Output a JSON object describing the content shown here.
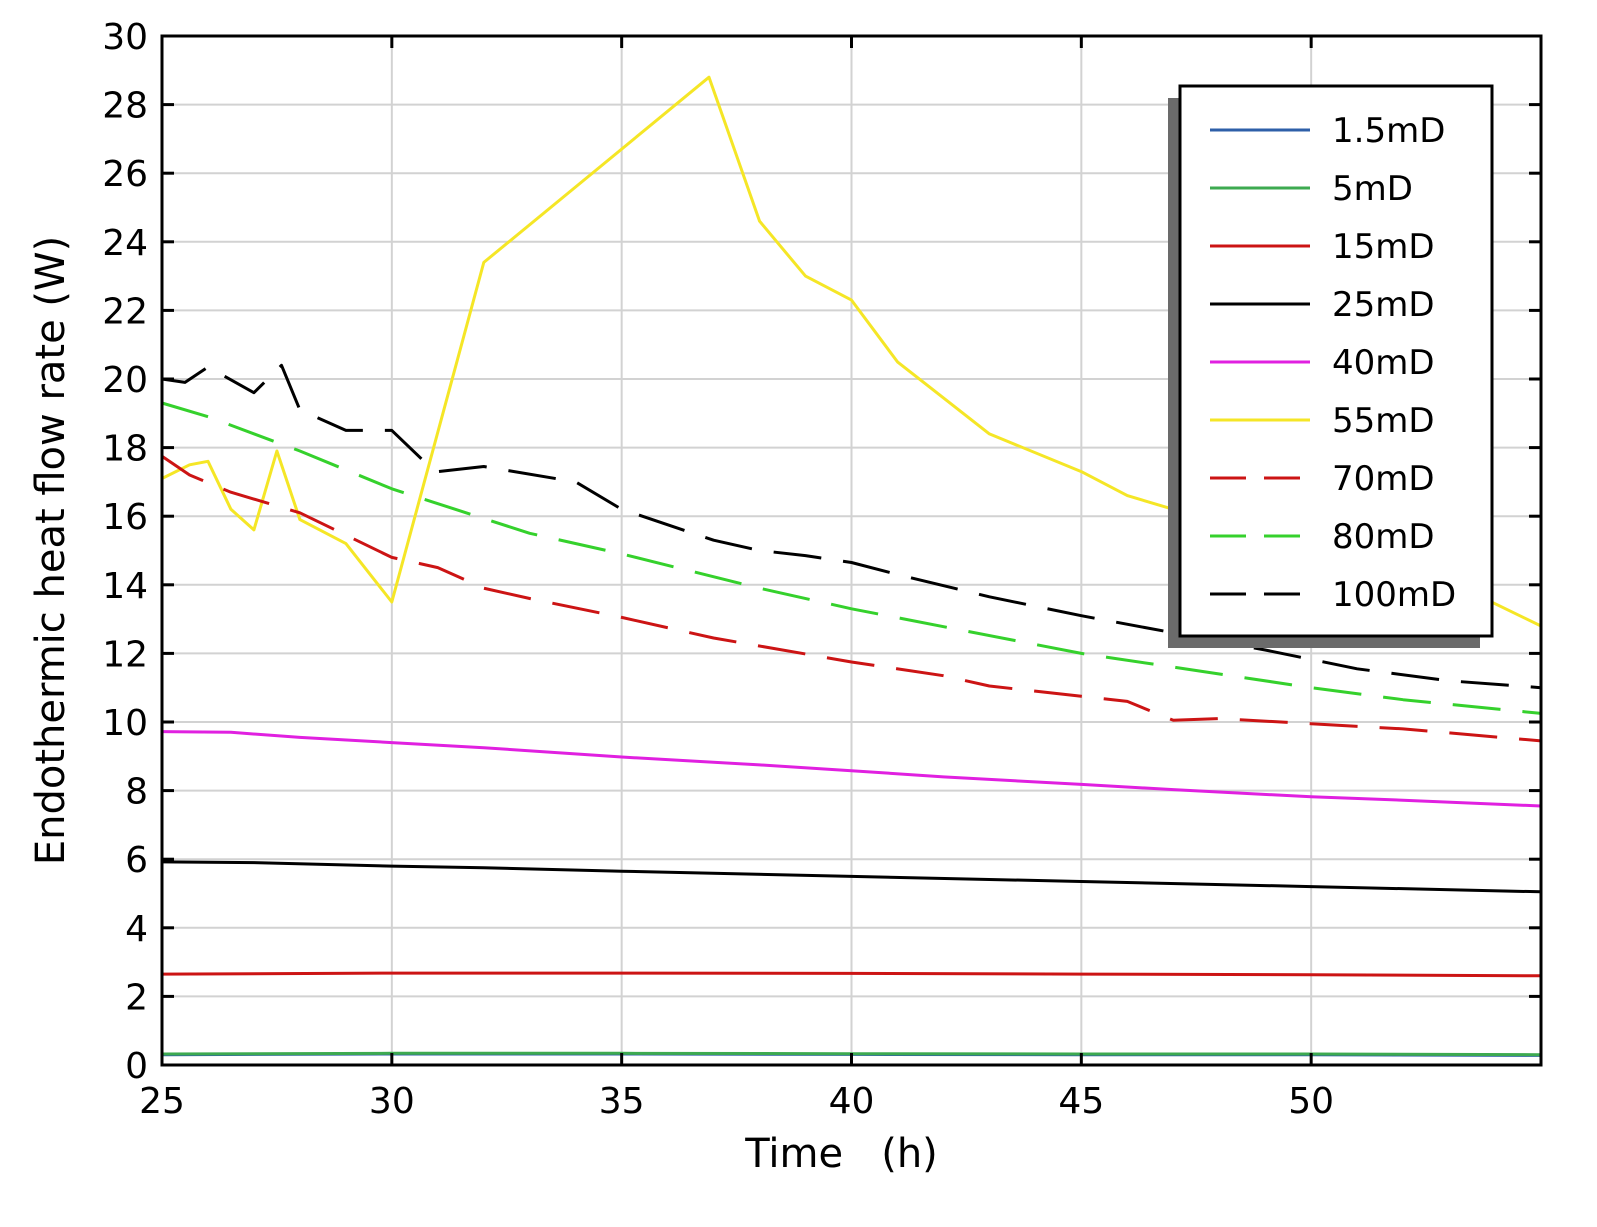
{
  "chart_data": {
    "type": "line",
    "title": "",
    "xlabel": "Time   (h)",
    "ylabel": "Endothermic heat flow rate (W)",
    "xlim": [
      25,
      55
    ],
    "ylim": [
      0,
      30
    ],
    "xticks": [
      25,
      30,
      35,
      40,
      45,
      50
    ],
    "yticks": [
      0,
      2,
      4,
      6,
      8,
      10,
      12,
      14,
      16,
      18,
      20,
      22,
      24,
      26,
      28,
      30
    ],
    "grid": true,
    "legend_position": "top-right",
    "series": [
      {
        "name": "1.5mD",
        "color": "#2e5fa8",
        "dash": "solid",
        "points": [
          [
            25,
            0.3
          ],
          [
            30,
            0.32
          ],
          [
            35,
            0.32
          ],
          [
            40,
            0.31
          ],
          [
            45,
            0.3
          ],
          [
            50,
            0.3
          ],
          [
            55,
            0.28
          ]
        ]
      },
      {
        "name": "5mD",
        "color": "#3daa50",
        "dash": "solid",
        "points": [
          [
            25,
            0.32
          ],
          [
            30,
            0.34
          ],
          [
            35,
            0.34
          ],
          [
            40,
            0.33
          ],
          [
            45,
            0.32
          ],
          [
            50,
            0.32
          ],
          [
            55,
            0.3
          ]
        ]
      },
      {
        "name": "15mD",
        "color": "#cc1414",
        "dash": "solid",
        "points": [
          [
            25,
            2.65
          ],
          [
            30,
            2.68
          ],
          [
            35,
            2.68
          ],
          [
            40,
            2.67
          ],
          [
            45,
            2.65
          ],
          [
            50,
            2.63
          ],
          [
            55,
            2.6
          ]
        ]
      },
      {
        "name": "25mD",
        "color": "#000000",
        "dash": "solid",
        "points": [
          [
            25,
            5.92
          ],
          [
            27,
            5.9
          ],
          [
            30,
            5.8
          ],
          [
            32,
            5.75
          ],
          [
            35,
            5.65
          ],
          [
            40,
            5.5
          ],
          [
            45,
            5.35
          ],
          [
            50,
            5.2
          ],
          [
            55,
            5.05
          ]
        ]
      },
      {
        "name": "40mD",
        "color": "#e020e0",
        "dash": "solid",
        "points": [
          [
            25,
            9.72
          ],
          [
            26.5,
            9.7
          ],
          [
            28,
            9.55
          ],
          [
            30,
            9.4
          ],
          [
            32,
            9.25
          ],
          [
            35,
            8.98
          ],
          [
            38,
            8.75
          ],
          [
            40,
            8.58
          ],
          [
            42,
            8.4
          ],
          [
            45,
            8.18
          ],
          [
            47,
            8.03
          ],
          [
            50,
            7.82
          ],
          [
            52,
            7.72
          ],
          [
            55,
            7.55
          ]
        ]
      },
      {
        "name": "55mD",
        "color": "#f5e626",
        "dash": "solid",
        "points": [
          [
            25,
            17.1
          ],
          [
            25.6,
            17.5
          ],
          [
            26,
            17.6
          ],
          [
            26.5,
            16.2
          ],
          [
            27,
            15.6
          ],
          [
            27.5,
            17.9
          ],
          [
            28,
            15.9
          ],
          [
            29,
            15.2
          ],
          [
            30,
            13.5
          ],
          [
            32,
            23.4
          ],
          [
            34,
            25.6
          ],
          [
            36.9,
            28.8
          ],
          [
            38,
            24.6
          ],
          [
            39,
            23
          ],
          [
            40,
            22.3
          ],
          [
            41,
            20.5
          ],
          [
            43,
            18.4
          ],
          [
            45,
            17.3
          ],
          [
            46,
            16.6
          ],
          [
            47.5,
            16
          ],
          [
            49.5,
            15.3
          ],
          [
            51,
            14.8
          ],
          [
            53,
            14.1
          ],
          [
            55,
            12.8
          ]
        ]
      },
      {
        "name": "70mD",
        "color": "#cc1414",
        "dash": "long",
        "points": [
          [
            25,
            17.75
          ],
          [
            25.6,
            17.2
          ],
          [
            26.5,
            16.7
          ],
          [
            28,
            16.1
          ],
          [
            30,
            14.8
          ],
          [
            31,
            14.5
          ],
          [
            32,
            13.9
          ],
          [
            33,
            13.6
          ],
          [
            35,
            13.05
          ],
          [
            37,
            12.45
          ],
          [
            40,
            11.75
          ],
          [
            42,
            11.35
          ],
          [
            43,
            11.05
          ],
          [
            45,
            10.75
          ],
          [
            46,
            10.6
          ],
          [
            47,
            10.05
          ],
          [
            48,
            10.1
          ],
          [
            50,
            9.95
          ],
          [
            52,
            9.8
          ],
          [
            55,
            9.45
          ]
        ]
      },
      {
        "name": "80mD",
        "color": "#35d12c",
        "dash": "long",
        "points": [
          [
            25,
            19.3
          ],
          [
            26,
            18.9
          ],
          [
            28,
            17.9
          ],
          [
            30,
            16.8
          ],
          [
            33,
            15.5
          ],
          [
            35,
            14.9
          ],
          [
            38,
            13.9
          ],
          [
            40,
            13.3
          ],
          [
            45,
            12
          ],
          [
            50,
            11
          ],
          [
            52,
            10.65
          ],
          [
            55,
            10.25
          ]
        ]
      },
      {
        "name": "100mD",
        "color": "#000000",
        "dash": "long",
        "points": [
          [
            25,
            20
          ],
          [
            25.5,
            19.9
          ],
          [
            26,
            20.35
          ],
          [
            27,
            19.6
          ],
          [
            27.6,
            20.4
          ],
          [
            28,
            19.1
          ],
          [
            29,
            18.5
          ],
          [
            30,
            18.5
          ],
          [
            30.7,
            17.6
          ],
          [
            31,
            17.3
          ],
          [
            32,
            17.45
          ],
          [
            34,
            17
          ],
          [
            35,
            16.2
          ],
          [
            37,
            15.3
          ],
          [
            38,
            15
          ],
          [
            39,
            14.85
          ],
          [
            40,
            14.65
          ],
          [
            41,
            14.3
          ],
          [
            43,
            13.65
          ],
          [
            45,
            13.1
          ],
          [
            47,
            12.6
          ],
          [
            49,
            12.1
          ],
          [
            51,
            11.55
          ],
          [
            53,
            11.2
          ],
          [
            55,
            11
          ]
        ]
      }
    ]
  }
}
